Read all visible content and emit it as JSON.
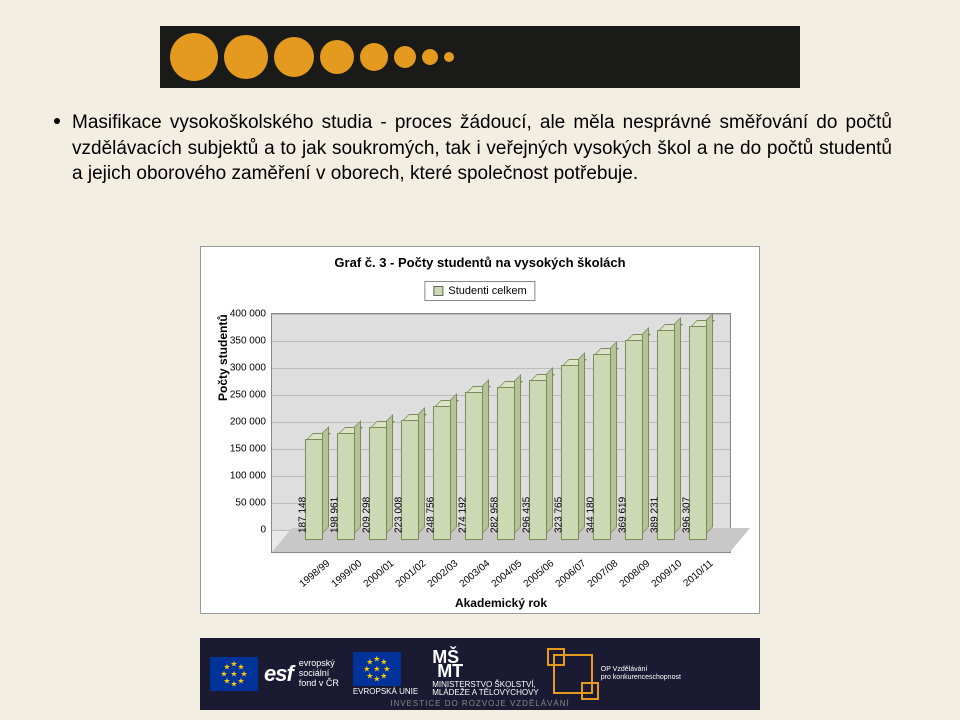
{
  "banner": {
    "background": "#1a1a18",
    "circle_color": "#e39a1f",
    "circle_sizes": [
      48,
      44,
      40,
      34,
      28,
      22,
      16,
      10
    ]
  },
  "paragraph": {
    "text": "Masifikace vysokoškolského studia - proces žádoucí, ale měla nesprávné směřování do počtů vzdělávacích subjektů a to jak soukromých, tak i veřejných vysokých škol a ne do počtů studentů a jejich oborového zaměření v oborech, které společnost potřebuje."
  },
  "chart": {
    "title": "Graf č. 3 - Počty studentů na vysokých školách",
    "legend_label": "Studenti celkem",
    "ylabel": "Počty studentů",
    "xlabel": "Akademický rok",
    "ylim": [
      0,
      400000
    ],
    "ytick_step": 50000,
    "yticks": [
      "0",
      "50 000",
      "100 000",
      "150 000",
      "200 000",
      "250 000",
      "300 000",
      "350 000",
      "400 000"
    ],
    "categories": [
      "1998/99",
      "1999/00",
      "2000/01",
      "2001/02",
      "2002/03",
      "2003/04",
      "2004/05",
      "2005/06",
      "2006/07",
      "2007/08",
      "2008/09",
      "2009/10",
      "2010/11"
    ],
    "values": [
      187148,
      198961,
      209298,
      223008,
      248756,
      274192,
      282958,
      296435,
      323765,
      344180,
      369619,
      389231,
      396307
    ],
    "value_labels": [
      "187 148",
      "198 961",
      "209 298",
      "223 008",
      "248 756",
      "274 192",
      "282 958",
      "296 435",
      "323 765",
      "344 180",
      "369 619",
      "389 231",
      "396 307"
    ],
    "bar_color_front": "#cdd9b2",
    "bar_color_top": "#dbe4c6",
    "bar_color_side": "#b6c298",
    "bar_border": "#7a8a5a",
    "plot_bg": "#e9e9e9",
    "grid_color": "#bbbbbb"
  },
  "footer": {
    "esf_big": "esf",
    "esf_lines": "evropský\nsociální\nfond v ČR",
    "eu_label": "EVROPSKÁ UNIE",
    "ministry": "MINISTERSTVO ŠKOLSTVÍ,\nMLÁDEŽE A TĚLOVÝCHOVY",
    "op_label": "OP Vzdělávání\npro konkurenceschopnost",
    "caption": "INVESTICE DO ROZVOJE VZDĚLÁVÁNÍ"
  }
}
